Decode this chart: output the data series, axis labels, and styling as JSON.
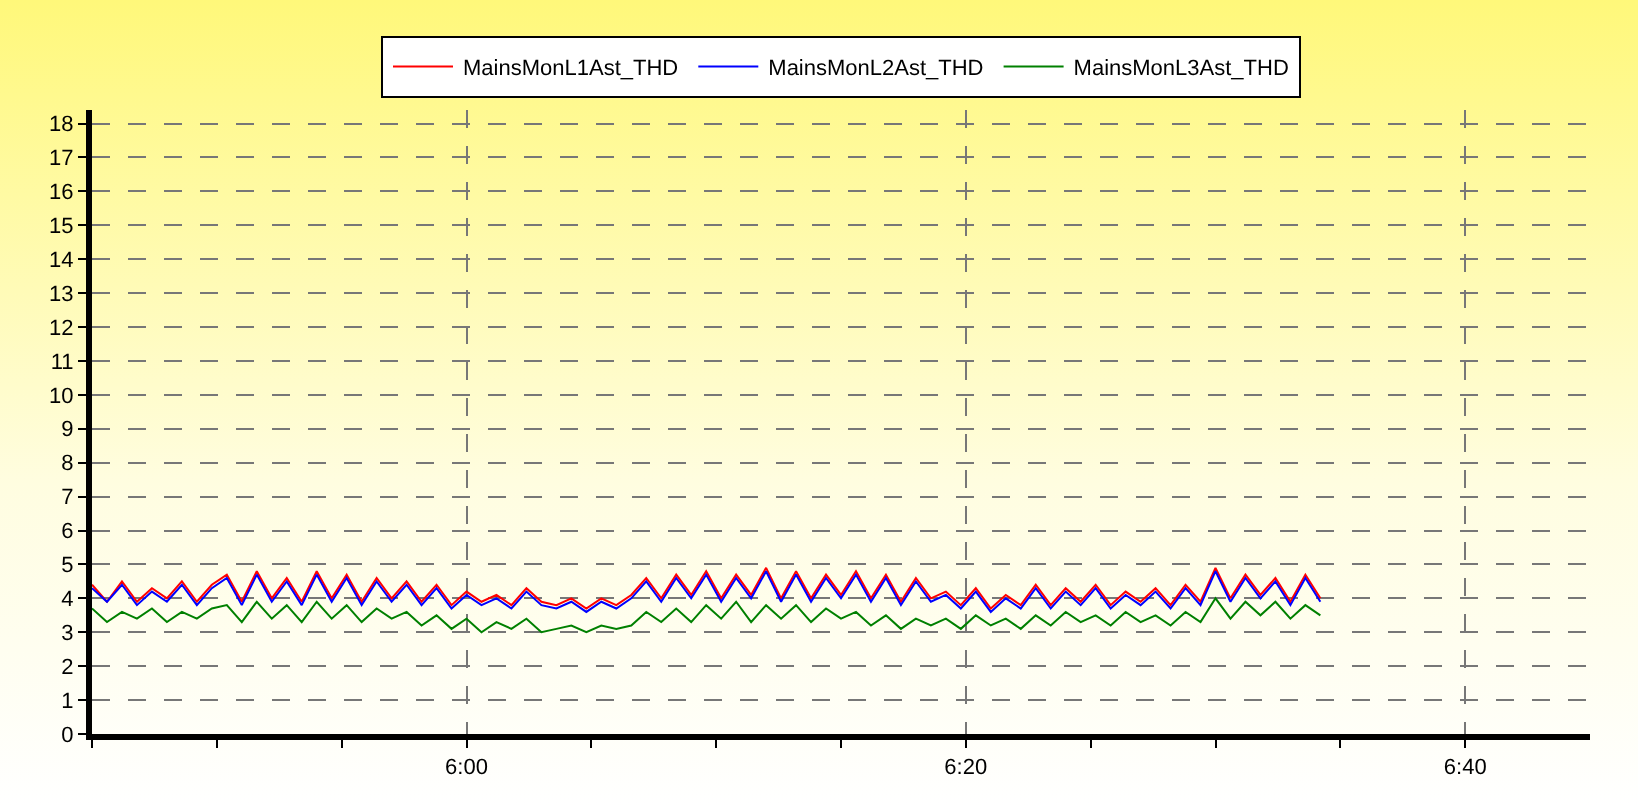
{
  "chart_data": {
    "type": "line",
    "legend": "top",
    "grid": true,
    "marker": "none",
    "line_style": "solid",
    "x": [
      5.75,
      5.76,
      5.77,
      5.78,
      5.79,
      5.8,
      5.81,
      5.82,
      5.83,
      5.84,
      5.85,
      5.86,
      5.87,
      5.88,
      5.89,
      5.9,
      5.91,
      5.92,
      5.93,
      5.94,
      5.95,
      5.96,
      5.97,
      5.98,
      5.99,
      6.0,
      6.01,
      6.02,
      6.03,
      6.04,
      6.05,
      6.06,
      6.07,
      6.08,
      6.09,
      6.1,
      6.11,
      6.12,
      6.13,
      6.14,
      6.15,
      6.16,
      6.17,
      6.18,
      6.19,
      6.2,
      6.21,
      6.22,
      6.23,
      6.24,
      6.25,
      6.26,
      6.27,
      6.28,
      6.29,
      6.3,
      6.31,
      6.32,
      6.33,
      6.34,
      6.35,
      6.36,
      6.37,
      6.38,
      6.39,
      6.4,
      6.41,
      6.42,
      6.43,
      6.44,
      6.45,
      6.46,
      6.47,
      6.48,
      6.49,
      6.5,
      6.51,
      6.52,
      6.53,
      6.54,
      6.55,
      6.56,
      6.57
    ],
    "xlim": [
      5.75,
      6.75
    ],
    "xticks": [
      {
        "value": 5.75,
        "label": null
      },
      {
        "value": 5.8333,
        "label": null
      },
      {
        "value": 5.9167,
        "label": null
      },
      {
        "value": 6,
        "label": "6:00"
      },
      {
        "value": 6.0833,
        "label": null
      },
      {
        "value": 6.1667,
        "label": null
      },
      {
        "value": 6.25,
        "label": null
      },
      {
        "value": 6.3333,
        "label": "6:20"
      },
      {
        "value": 6.4167,
        "label": null
      },
      {
        "value": 6.5,
        "label": null
      },
      {
        "value": 6.5833,
        "label": null
      },
      {
        "value": 6.6667,
        "label": "6:40"
      }
    ],
    "ylim": [
      0,
      18.4
    ],
    "yticks": [
      0,
      1,
      2,
      3,
      4,
      5,
      6,
      7,
      8,
      9,
      10,
      11,
      12,
      13,
      14,
      15,
      16,
      17,
      18
    ],
    "series": [
      {
        "name": "MainsMonL1Ast_THD",
        "color": "#ff0000",
        "values": [
          4.4,
          3.9,
          4.5,
          3.9,
          4.3,
          4.0,
          4.5,
          3.9,
          4.4,
          4.7,
          3.9,
          4.8,
          4.0,
          4.6,
          3.9,
          4.8,
          4.0,
          4.7,
          3.9,
          4.6,
          4.0,
          4.5,
          3.9,
          4.4,
          3.8,
          4.2,
          3.9,
          4.1,
          3.8,
          4.3,
          3.9,
          3.8,
          4.0,
          3.7,
          4.0,
          3.8,
          4.1,
          4.6,
          4.0,
          4.7,
          4.1,
          4.8,
          4.0,
          4.7,
          4.1,
          4.9,
          4.0,
          4.8,
          4.0,
          4.7,
          4.1,
          4.8,
          4.0,
          4.7,
          3.9,
          4.6,
          4.0,
          4.2,
          3.8,
          4.3,
          3.7,
          4.1,
          3.8,
          4.4,
          3.8,
          4.3,
          3.9,
          4.4,
          3.8,
          4.2,
          3.9,
          4.3,
          3.8,
          4.4,
          3.9,
          4.9,
          4.0,
          4.7,
          4.1,
          4.6,
          3.9,
          4.7,
          4.0
        ]
      },
      {
        "name": "MainsMonL2Ast_THD",
        "color": "#0000ff",
        "values": [
          4.3,
          3.9,
          4.4,
          3.8,
          4.2,
          3.9,
          4.4,
          3.8,
          4.3,
          4.6,
          3.8,
          4.7,
          3.9,
          4.5,
          3.8,
          4.7,
          3.9,
          4.6,
          3.8,
          4.5,
          3.9,
          4.4,
          3.8,
          4.3,
          3.7,
          4.1,
          3.8,
          4.0,
          3.7,
          4.2,
          3.8,
          3.7,
          3.9,
          3.6,
          3.9,
          3.7,
          4.0,
          4.5,
          3.9,
          4.6,
          4.0,
          4.7,
          3.9,
          4.6,
          4.0,
          4.8,
          3.9,
          4.7,
          3.9,
          4.6,
          4.0,
          4.7,
          3.9,
          4.6,
          3.8,
          4.5,
          3.9,
          4.1,
          3.7,
          4.2,
          3.6,
          4.0,
          3.7,
          4.3,
          3.7,
          4.2,
          3.8,
          4.3,
          3.7,
          4.1,
          3.8,
          4.2,
          3.7,
          4.3,
          3.8,
          4.8,
          3.9,
          4.6,
          4.0,
          4.5,
          3.8,
          4.6,
          3.9
        ]
      },
      {
        "name": "MainsMonL3Ast_THD",
        "color": "#008000",
        "values": [
          3.7,
          3.3,
          3.6,
          3.4,
          3.7,
          3.3,
          3.6,
          3.4,
          3.7,
          3.8,
          3.3,
          3.9,
          3.4,
          3.8,
          3.3,
          3.9,
          3.4,
          3.8,
          3.3,
          3.7,
          3.4,
          3.6,
          3.2,
          3.5,
          3.1,
          3.4,
          3.0,
          3.3,
          3.1,
          3.4,
          3.0,
          3.1,
          3.2,
          3.0,
          3.2,
          3.1,
          3.2,
          3.6,
          3.3,
          3.7,
          3.3,
          3.8,
          3.4,
          3.9,
          3.3,
          3.8,
          3.4,
          3.8,
          3.3,
          3.7,
          3.4,
          3.6,
          3.2,
          3.5,
          3.1,
          3.4,
          3.2,
          3.4,
          3.1,
          3.5,
          3.2,
          3.4,
          3.1,
          3.5,
          3.2,
          3.6,
          3.3,
          3.5,
          3.2,
          3.6,
          3.3,
          3.5,
          3.2,
          3.6,
          3.3,
          4.0,
          3.4,
          3.9,
          3.5,
          3.9,
          3.4,
          3.8,
          3.5
        ]
      }
    ]
  }
}
